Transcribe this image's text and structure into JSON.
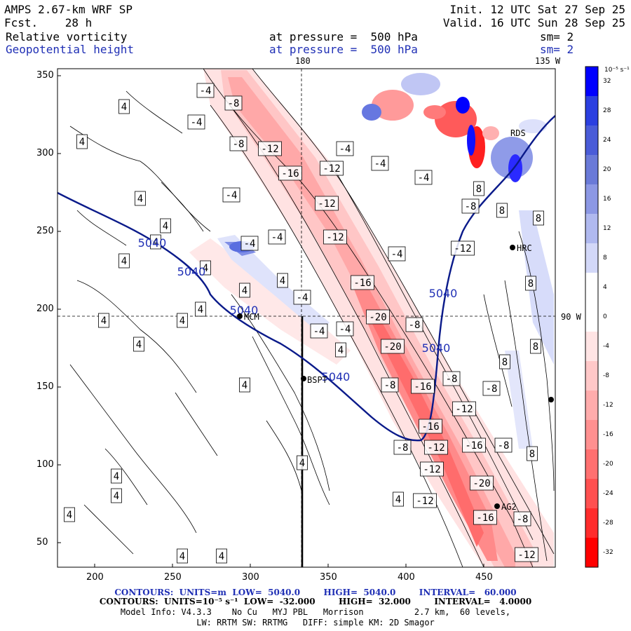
{
  "header": {
    "model": "AMPS 2.67-km WRF SP",
    "init": "Init. 12 UTC Sat 27 Sep 25",
    "fcst": "Fcst.    28 h",
    "valid": "Valid. 16 UTC Sun 28 Sep 25",
    "field1_name": "Relative vorticity",
    "field1_level": "at pressure =  500 hPa",
    "field1_sm": "sm= 2",
    "field2_name": "Geopotential height",
    "field2_level": "at pressure =  500 hPa",
    "field2_sm": "sm= 2"
  },
  "map_labels": {
    "lon180": "180",
    "lon135w": "135 W",
    "lat90w": "90 W",
    "stations": [
      "MCM",
      "HRC",
      "AG2",
      "BSPT",
      "RDS"
    ]
  },
  "axes": {
    "x_ticks": [
      "200",
      "250",
      "300",
      "350",
      "400",
      "450"
    ],
    "y_ticks": [
      "350",
      "300",
      "250",
      "200",
      "150",
      "100",
      "50"
    ]
  },
  "colorbar": {
    "unit": "10⁻⁵ s⁻¹",
    "labels": [
      "32",
      "28",
      "24",
      "20",
      "16",
      "12",
      "8",
      "4",
      "0",
      "-4",
      "-8",
      "-12",
      "-16",
      "-20",
      "-24",
      "-28",
      "-32"
    ],
    "colors": [
      "#0000ff",
      "#2b3fe0",
      "#4a5cd8",
      "#6a7ad8",
      "#8c98e4",
      "#b0b9ef",
      "#d3d8f8",
      "#ffffff",
      "#ffffff",
      "#ffe4e4",
      "#ffc8c8",
      "#ffacac",
      "#ff9090",
      "#ff7070",
      "#ff5050",
      "#ff2c2c",
      "#ff0000"
    ]
  },
  "contour_labels": {
    "height": [
      "5040",
      "5040",
      "5040",
      "5040",
      "5040",
      "5040"
    ],
    "vorticity_pos": [
      "4",
      "4",
      "4",
      "4",
      "4",
      "4",
      "4",
      "4",
      "4",
      "4",
      "4",
      "4",
      "4",
      "4",
      "4",
      "4",
      "4",
      "4",
      "4",
      "4",
      "4",
      "4",
      "8",
      "8",
      "8",
      "8",
      "8",
      "8",
      "8"
    ],
    "vorticity_neg": [
      "-4",
      "-4",
      "-4",
      "-4",
      "-4",
      "-4",
      "-4",
      "-4",
      "-4",
      "-4",
      "-4",
      "-4",
      "-8",
      "-8",
      "-8",
      "-8",
      "-8",
      "-8",
      "-8",
      "-8",
      "-8",
      "-8",
      "-12",
      "-12",
      "-12",
      "-12",
      "-12",
      "-12",
      "-12",
      "-12",
      "-12",
      "-12",
      "-16",
      "-16",
      "-16",
      "-16",
      "-16",
      "-16",
      "-20",
      "-20",
      "-20"
    ]
  },
  "footer": {
    "line1": "CONTOURS:  UNITS=m  LOW=  5040.0        HIGH=  5040.0        INTERVAL=   60.000",
    "line2": "CONTOURS:  UNITS=10⁻⁵ s⁻¹  LOW=  -32.000        HIGH=  32.000        INTERVAL=   4.0000",
    "line3": "Model Info: V4.3.3    No Cu   MYJ PBL   Morrison          2.7 km,  60 levels,",
    "line4": "LW: RRTM SW: RRTMG   DIFF: simple KM: 2D Smagor"
  }
}
